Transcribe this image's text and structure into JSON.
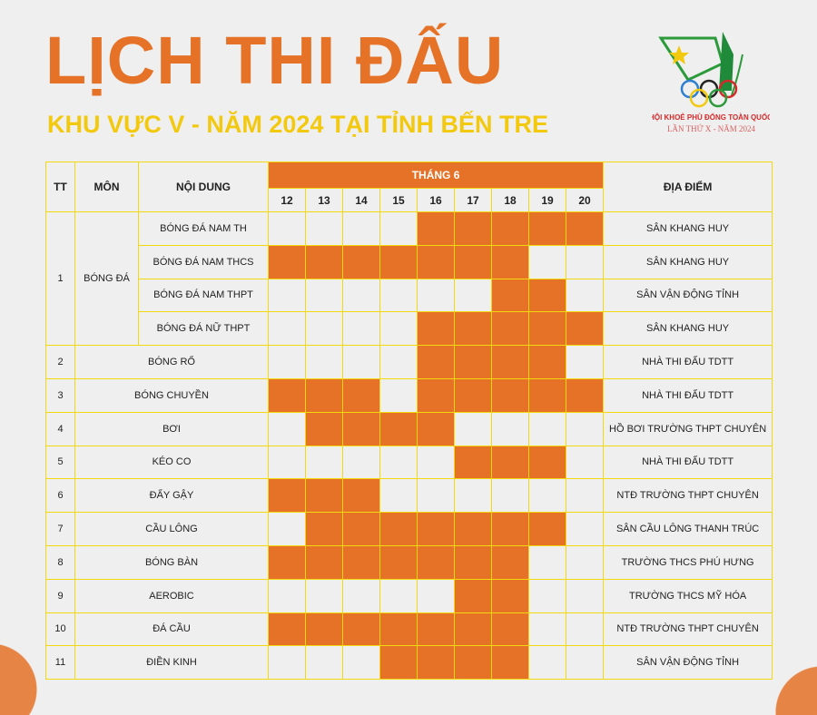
{
  "header": {
    "title": "LỊCH THI ĐẤU",
    "subtitle": "KHU VỰC V - NĂM 2024 TẠI TỈNH BẾN TRE"
  },
  "logo": {
    "text": "HỘI KHOẺ PHÙ ĐỔNG TOÀN QUỐC",
    "caption": "LẦN THỨ X - NĂM 2024"
  },
  "colors": {
    "accent": "#e57227",
    "yellow": "#f2c90f"
  },
  "table": {
    "headers": {
      "tt": "TT",
      "mon": "MÔN",
      "noi_dung": "NỘI DUNG",
      "month": "THÁNG 6",
      "dia_diem": "ĐỊA ĐIỂM"
    },
    "days": [
      "12",
      "13",
      "14",
      "15",
      "16",
      "17",
      "18",
      "19",
      "20"
    ],
    "rows": [
      {
        "tt": "1",
        "mon": "BÓNG ĐÁ",
        "noi_dung": "BÓNG ĐÁ NAM TH",
        "days": [
          "16",
          "17",
          "18",
          "19",
          "20"
        ],
        "dia_diem": "SÂN KHANG HUY"
      },
      {
        "noi_dung": "BÓNG ĐÁ NAM THCS",
        "days": [
          "12",
          "13",
          "14",
          "15",
          "16",
          "17",
          "18"
        ],
        "dia_diem": "SÂN KHANG HUY"
      },
      {
        "noi_dung": "BÓNG ĐÁ NAM THPT",
        "days": [
          "18",
          "19"
        ],
        "dia_diem": "SÂN VẬN ĐỘNG TỈNH"
      },
      {
        "noi_dung": "BÓNG ĐÁ NỮ THPT",
        "days": [
          "16",
          "17",
          "18",
          "19",
          "20"
        ],
        "dia_diem": "SÂN KHANG HUY"
      },
      {
        "tt": "2",
        "mon": "BÓNG RỔ",
        "days": [
          "16",
          "17",
          "18",
          "19"
        ],
        "dia_diem": "NHÀ THI ĐẤU TDTT"
      },
      {
        "tt": "3",
        "mon": "BÓNG CHUYỀN",
        "days": [
          "12",
          "13",
          "14",
          "16",
          "17",
          "18",
          "19",
          "20"
        ],
        "dia_diem": "NHÀ THI ĐẤU TDTT"
      },
      {
        "tt": "4",
        "mon": "BƠI",
        "days": [
          "13",
          "14",
          "15",
          "16"
        ],
        "dia_diem": "HỒ BƠI TRƯỜNG THPT CHUYÊN"
      },
      {
        "tt": "5",
        "mon": "KÉO CO",
        "days": [
          "17",
          "18",
          "19"
        ],
        "dia_diem": "NHÀ THI ĐẤU TDTT"
      },
      {
        "tt": "6",
        "mon": "ĐẨY GẬY",
        "days": [
          "12",
          "13",
          "14"
        ],
        "dia_diem": "NTĐ TRƯỜNG THPT CHUYÊN"
      },
      {
        "tt": "7",
        "mon": "CẦU LÔNG",
        "days": [
          "13",
          "14",
          "15",
          "16",
          "17",
          "18",
          "19"
        ],
        "dia_diem": "SÂN CẦU LÔNG THANH TRÚC"
      },
      {
        "tt": "8",
        "mon": "BÓNG BÀN",
        "days": [
          "12",
          "13",
          "14",
          "15",
          "16",
          "17",
          "18"
        ],
        "dia_diem": "TRƯỜNG THCS PHÚ HƯNG"
      },
      {
        "tt": "9",
        "mon": "AEROBIC",
        "days": [
          "17",
          "18"
        ],
        "dia_diem": "TRƯỜNG THCS MỸ HÓA"
      },
      {
        "tt": "10",
        "mon": "ĐÁ CẦU",
        "days": [
          "12",
          "13",
          "14",
          "15",
          "16",
          "17",
          "18"
        ],
        "dia_diem": "NTĐ TRƯỜNG THPT CHUYÊN"
      },
      {
        "tt": "11",
        "mon": "ĐIỀN KINH",
        "days": [
          "15",
          "16",
          "17",
          "18"
        ],
        "dia_diem": "SÂN VẬN ĐỘNG TỈNH"
      }
    ]
  }
}
